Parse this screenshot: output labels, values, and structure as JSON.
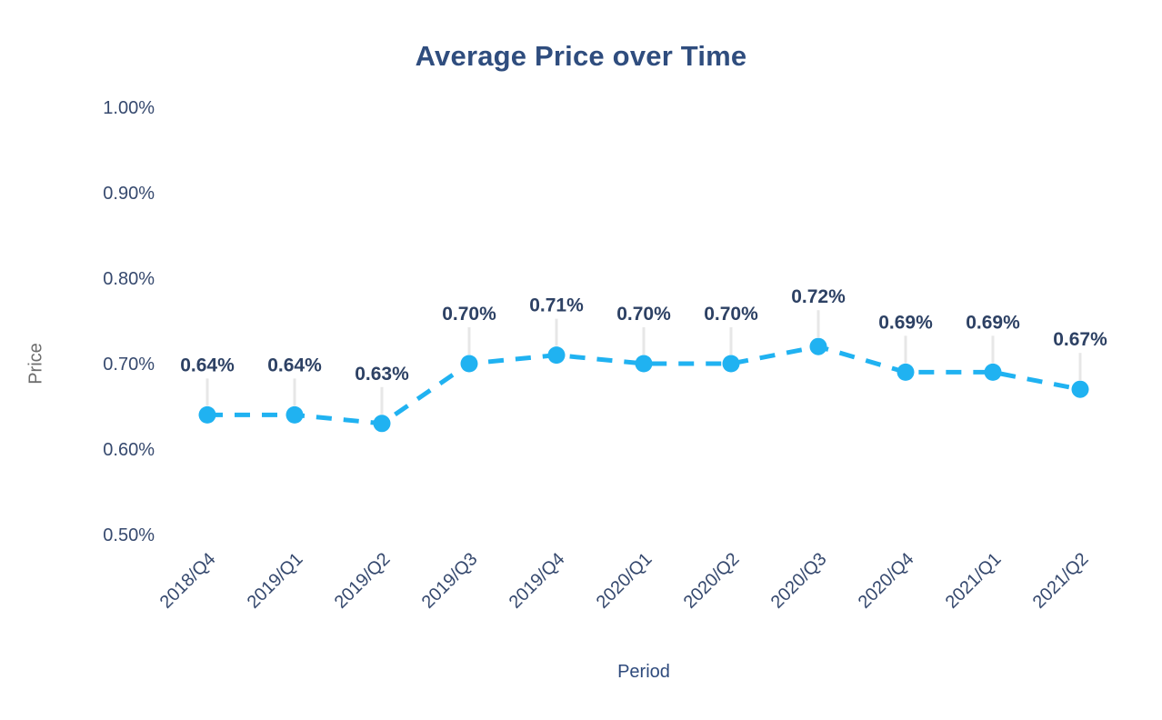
{
  "chart_data": {
    "type": "line",
    "title": "Average Price over Time",
    "xlabel": "Period",
    "ylabel": "Price",
    "categories": [
      "2018/Q4",
      "2019/Q1",
      "2019/Q2",
      "2019/Q3",
      "2019/Q4",
      "2020/Q1",
      "2020/Q2",
      "2020/Q3",
      "2020/Q4",
      "2021/Q1",
      "2021/Q2"
    ],
    "values": [
      0.64,
      0.64,
      0.63,
      0.7,
      0.71,
      0.7,
      0.7,
      0.72,
      0.69,
      0.69,
      0.67
    ],
    "data_labels": [
      "0.64%",
      "0.64%",
      "0.63%",
      "0.70%",
      "0.71%",
      "0.70%",
      "0.70%",
      "0.72%",
      "0.69%",
      "0.69%",
      "0.67%"
    ],
    "y_ticks": [
      {
        "value": 1.0,
        "label": "1.00%"
      },
      {
        "value": 0.9,
        "label": "0.90%"
      },
      {
        "value": 0.8,
        "label": "0.80%"
      },
      {
        "value": 0.7,
        "label": "0.70%"
      },
      {
        "value": 0.6,
        "label": "0.60%"
      },
      {
        "value": 0.5,
        "label": "0.50%"
      }
    ],
    "ylim": [
      0.5,
      1.0
    ],
    "grid": false,
    "legend_position": "none",
    "line_style": "dashed",
    "colors": {
      "line": "#20b2f1",
      "marker": "#20b2f1",
      "title": "#2f4d7e",
      "tick_label": "#36496e",
      "data_label": "#2d4164",
      "y_axis_title": "#6d6d6d",
      "x_axis_title": "#2e4a7c",
      "leader_line": "#e7e7e7",
      "background": "#ffffff"
    }
  }
}
